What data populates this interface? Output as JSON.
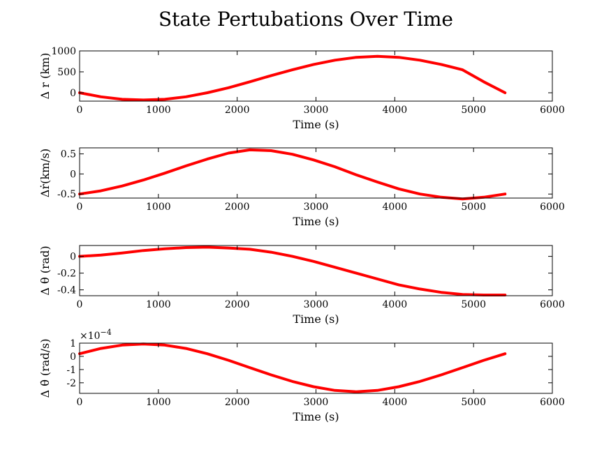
{
  "title": "State Pertubations Over Time",
  "colors": {
    "series": "#ff0000",
    "axes": "#000000"
  },
  "chart_data": [
    {
      "type": "line",
      "name": "delta-r",
      "ylabel": "Δ r (km)",
      "xlabel": "Time (s)",
      "xlim": [
        0,
        6000
      ],
      "ylim": [
        -200,
        1000
      ],
      "xticks": [
        0,
        1000,
        2000,
        3000,
        4000,
        5000,
        6000
      ],
      "yticks": [
        0,
        500,
        1000
      ],
      "ytick_labels": [
        "0",
        "500",
        "1000"
      ],
      "exponent": "",
      "x": [
        0,
        270,
        540,
        810,
        1080,
        1350,
        1620,
        1890,
        2160,
        2430,
        2700,
        2970,
        3240,
        3510,
        3780,
        4050,
        4320,
        4590,
        4860,
        5130,
        5400
      ],
      "y": [
        0,
        -96,
        -156,
        -174,
        -156,
        -96,
        0,
        120,
        262,
        410,
        548,
        676,
        778,
        846,
        870,
        846,
        778,
        676,
        548,
        262,
        0
      ]
    },
    {
      "type": "line",
      "name": "delta-r-dot",
      "ylabel": "Δṙ(km/s)",
      "xlabel": "Time (s)",
      "xlim": [
        0,
        6000
      ],
      "ylim": [
        -0.6,
        0.65
      ],
      "xticks": [
        0,
        1000,
        2000,
        3000,
        4000,
        5000,
        6000
      ],
      "yticks": [
        -0.5,
        0,
        0.5
      ],
      "ytick_labels": [
        "-0.5",
        "0",
        "0.5"
      ],
      "exponent": "",
      "x": [
        0,
        270,
        540,
        810,
        1080,
        1350,
        1620,
        1890,
        2160,
        2430,
        2700,
        2970,
        3240,
        3510,
        3780,
        4050,
        4320,
        4590,
        4860,
        5130,
        5400
      ],
      "y": [
        -0.5,
        -0.42,
        -0.3,
        -0.15,
        0.02,
        0.2,
        0.37,
        0.52,
        0.6,
        0.58,
        0.49,
        0.35,
        0.18,
        -0.02,
        -0.2,
        -0.37,
        -0.5,
        -0.58,
        -0.62,
        -0.58,
        -0.5
      ]
    },
    {
      "type": "line",
      "name": "delta-theta",
      "ylabel": "Δ θ (rad)",
      "xlabel": "Time (s)",
      "xlim": [
        0,
        6000
      ],
      "ylim": [
        -0.47,
        0.13
      ],
      "xticks": [
        0,
        1000,
        2000,
        3000,
        4000,
        5000,
        6000
      ],
      "yticks": [
        -0.4,
        -0.2,
        0
      ],
      "ytick_labels": [
        "-0.4",
        "-0.2",
        "0"
      ],
      "exponent": "",
      "x": [
        0,
        270,
        540,
        810,
        1080,
        1350,
        1620,
        1890,
        2160,
        2430,
        2700,
        2970,
        3240,
        3510,
        3780,
        4050,
        4320,
        4590,
        4860,
        5130,
        5400
      ],
      "y": [
        0,
        0.015,
        0.04,
        0.07,
        0.09,
        0.105,
        0.11,
        0.1,
        0.085,
        0.05,
        0.0,
        -0.06,
        -0.13,
        -0.2,
        -0.27,
        -0.34,
        -0.39,
        -0.43,
        -0.455,
        -0.462,
        -0.462
      ]
    },
    {
      "type": "line",
      "name": "delta-theta-dot",
      "ylabel": "Δ θ̇ (rad/s)",
      "xlabel": "Time (s)",
      "xlim": [
        0,
        6000
      ],
      "ylim": [
        -2.8,
        1
      ],
      "xticks": [
        0,
        1000,
        2000,
        3000,
        4000,
        5000,
        6000
      ],
      "yticks": [
        -2,
        -1,
        0,
        1
      ],
      "ytick_labels": [
        "-2",
        "-1",
        "0",
        "1"
      ],
      "exponent": "×10",
      "exponent_power": "−4",
      "x": [
        0,
        270,
        540,
        810,
        1080,
        1350,
        1620,
        1890,
        2160,
        2430,
        2700,
        2970,
        3240,
        3510,
        3780,
        4050,
        4320,
        4590,
        4860,
        5130,
        5400
      ],
      "y": [
        0.2,
        0.6,
        0.85,
        0.93,
        0.85,
        0.6,
        0.2,
        -0.3,
        -0.85,
        -1.4,
        -1.9,
        -2.3,
        -2.58,
        -2.68,
        -2.58,
        -2.3,
        -1.9,
        -1.4,
        -0.85,
        -0.3,
        0.2
      ]
    }
  ]
}
